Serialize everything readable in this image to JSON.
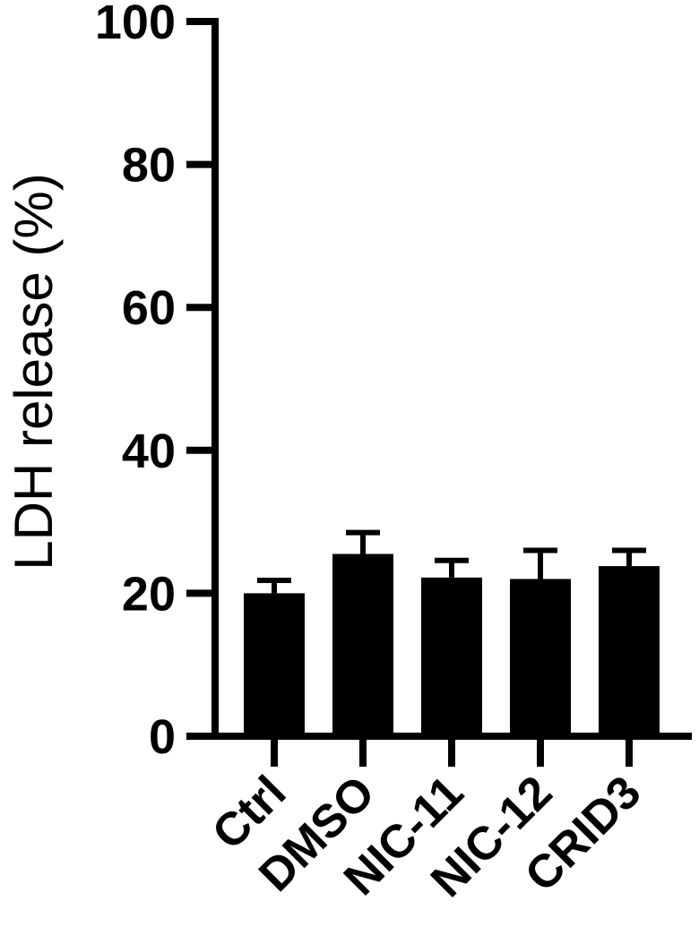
{
  "chart_data": {
    "type": "bar",
    "title": "",
    "xlabel": "",
    "ylabel": "LDH release (%)",
    "ylim": [
      0,
      100
    ],
    "yticks": [
      0,
      20,
      40,
      60,
      80,
      100
    ],
    "categories": [
      "Ctrl",
      "DMSO",
      "NIC-11",
      "NIC-12",
      "CRID3"
    ],
    "values": [
      20,
      25.5,
      22.2,
      22,
      23.8
    ],
    "error": [
      1.8,
      3,
      2.4,
      4,
      2.2
    ],
    "bar_color": "#000000",
    "grid": false,
    "legend": "none"
  }
}
